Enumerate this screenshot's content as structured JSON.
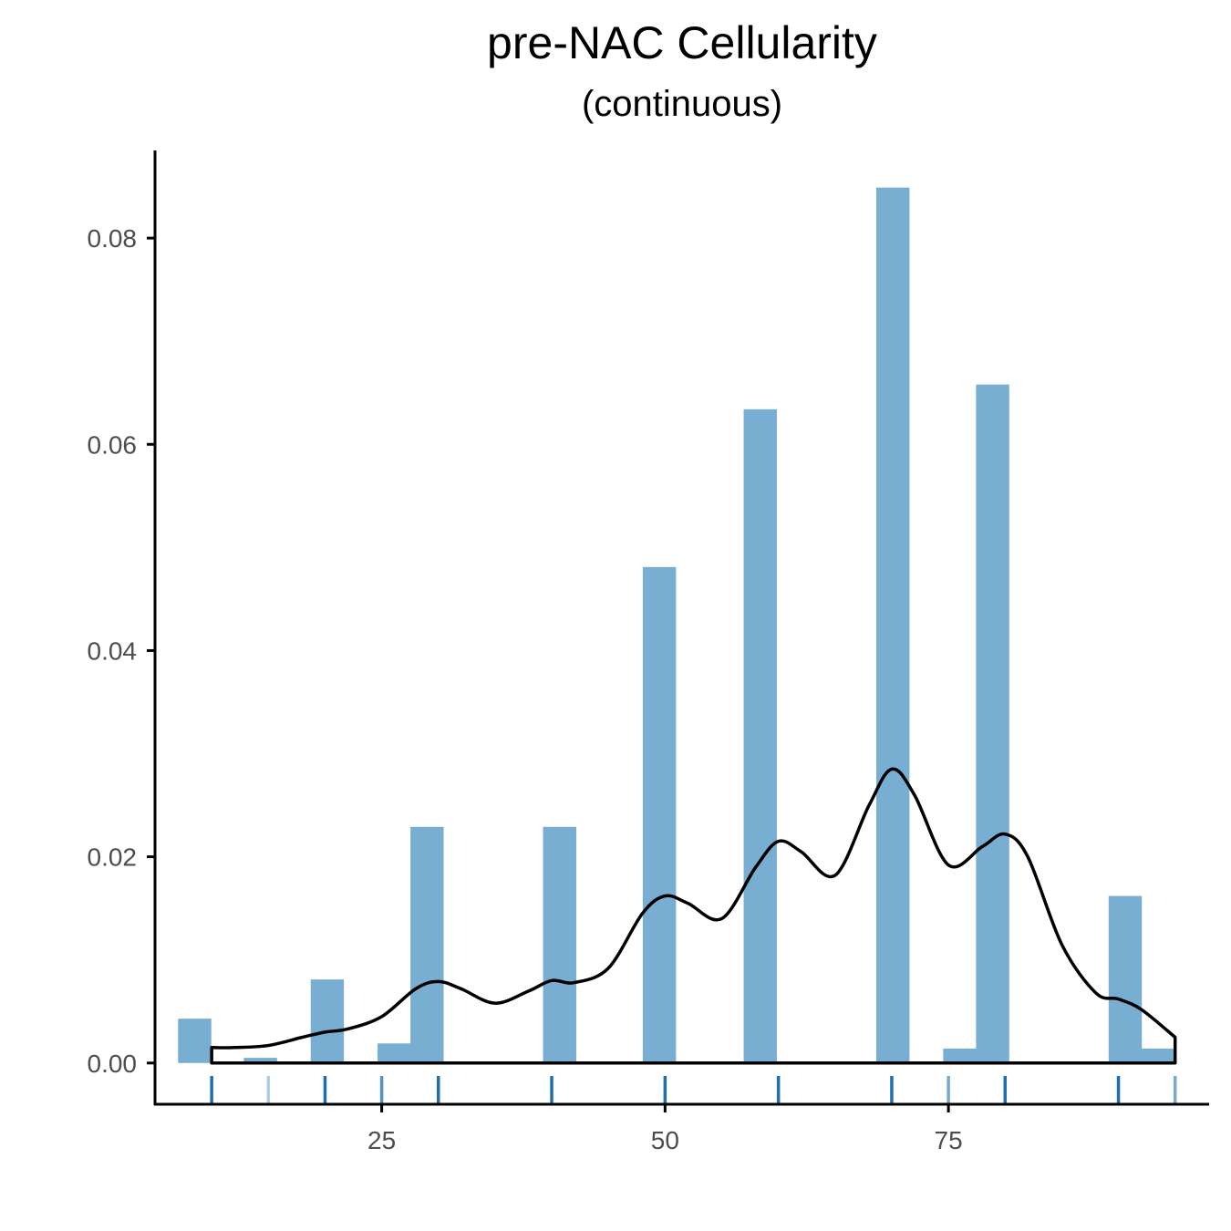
{
  "chart_data": {
    "type": "bar",
    "title": "pre-NAC Cellularity",
    "subtitle": "(continuous)",
    "xlabel": "",
    "ylabel": "",
    "xlim": [
      5,
      98
    ],
    "ylim": [
      -0.004,
      0.0885
    ],
    "x_ticks": [
      25,
      50,
      75
    ],
    "y_ticks": [
      0.0,
      0.02,
      0.04,
      0.06,
      0.08
    ],
    "y_tick_labels": [
      "0.00",
      "0.02",
      "0.04",
      "0.06",
      "0.08"
    ],
    "grid": false,
    "legend": "none",
    "bar_color": "#78AED2",
    "curve_color": "#000000",
    "rug_color": "#1F6FAE",
    "bin_width": 2.93,
    "histogram": [
      {
        "x": 8.5,
        "density": 0.0043
      },
      {
        "x": 14.3,
        "density": 0.0005
      },
      {
        "x": 20.2,
        "density": 0.0081
      },
      {
        "x": 26.1,
        "density": 0.0019
      },
      {
        "x": 29.0,
        "density": 0.0229
      },
      {
        "x": 40.7,
        "density": 0.0229
      },
      {
        "x": 49.5,
        "density": 0.0481
      },
      {
        "x": 58.4,
        "density": 0.0634
      },
      {
        "x": 70.1,
        "density": 0.0849
      },
      {
        "x": 76.0,
        "density": 0.0014
      },
      {
        "x": 78.9,
        "density": 0.0658
      },
      {
        "x": 90.6,
        "density": 0.0162
      },
      {
        "x": 93.5,
        "density": 0.0014
      }
    ],
    "density_curve": {
      "x": [
        10,
        12,
        15,
        18,
        20,
        22,
        25,
        28,
        30,
        32,
        35,
        38,
        40,
        42,
        45,
        48,
        50,
        52,
        55,
        58,
        60,
        62,
        65,
        68,
        70,
        72,
        75,
        78,
        80,
        82,
        85,
        88,
        90,
        92,
        95
      ],
      "y": [
        0.0015,
        0.0015,
        0.0017,
        0.0025,
        0.003,
        0.0033,
        0.0045,
        0.0072,
        0.0079,
        0.0072,
        0.0058,
        0.007,
        0.008,
        0.0078,
        0.0092,
        0.0145,
        0.0162,
        0.0155,
        0.014,
        0.019,
        0.0215,
        0.0205,
        0.0182,
        0.025,
        0.0285,
        0.026,
        0.0192,
        0.021,
        0.0222,
        0.02,
        0.0115,
        0.0068,
        0.0062,
        0.0052,
        0.0025
      ]
    },
    "rug": [
      {
        "x": 10,
        "opacity": 1.0
      },
      {
        "x": 15,
        "opacity": 0.35
      },
      {
        "x": 20,
        "opacity": 1.0
      },
      {
        "x": 25,
        "opacity": 0.75
      },
      {
        "x": 30,
        "opacity": 1.0
      },
      {
        "x": 40,
        "opacity": 1.0
      },
      {
        "x": 50,
        "opacity": 1.0
      },
      {
        "x": 60,
        "opacity": 1.0
      },
      {
        "x": 70,
        "opacity": 1.0
      },
      {
        "x": 75,
        "opacity": 0.6
      },
      {
        "x": 80,
        "opacity": 1.0
      },
      {
        "x": 90,
        "opacity": 1.0
      },
      {
        "x": 95,
        "opacity": 0.6
      }
    ]
  }
}
